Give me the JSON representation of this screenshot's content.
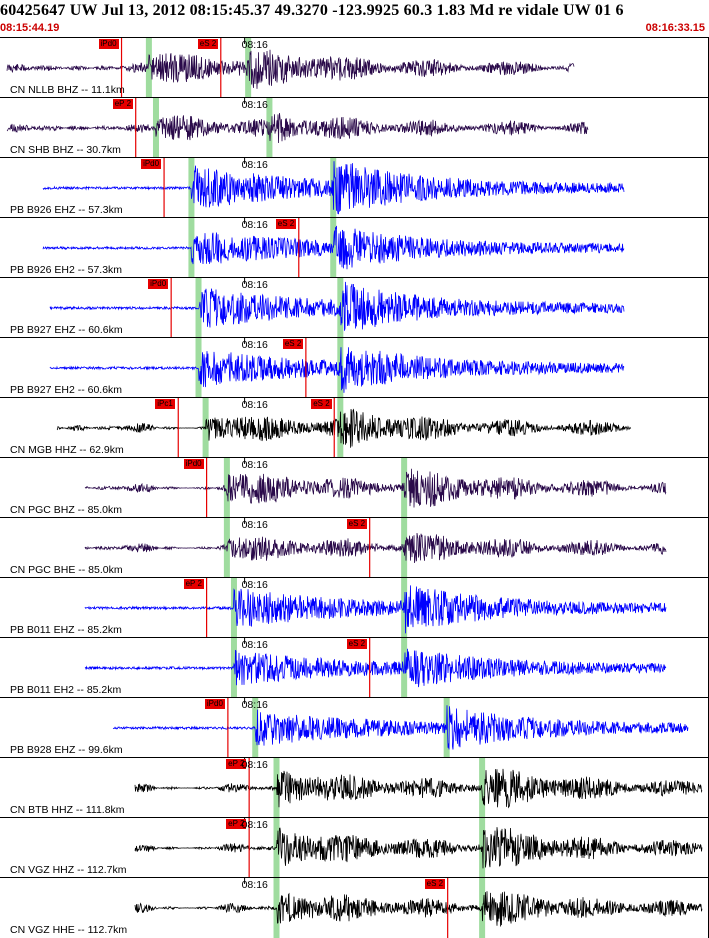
{
  "header": {
    "title": "60425647 UW Jul 13, 2012 08:15:45.37    49.3270 -123.9925 60.3 1.83 Md re vidale UW 01    6",
    "start_time": "08:15:44.19",
    "end_time": "08:16:33.15"
  },
  "colors": {
    "pick": "#e60000",
    "theoretical": "#9fdc9f",
    "short_period": "#0000ff",
    "broadband": "#2a0a4a",
    "high_gain": "#000000"
  },
  "traces": [
    {
      "label": "CN NLLB BHZ -- 11.1km",
      "time_label": "08:16",
      "color_name": "broadband",
      "seed": 11,
      "amp": 0.55,
      "start": 0.01,
      "end": 0.81,
      "onset": 0.21,
      "s": 0.35,
      "picks": [
        {
          "text": "iPd0",
          "at": 0.17
        },
        {
          "text": "eS 2",
          "at": 0.31
        }
      ]
    },
    {
      "label": "CN SHB BHZ -- 30.7km",
      "time_label": "08:16",
      "color_name": "broadband",
      "seed": 23,
      "amp": 0.35,
      "start": 0.01,
      "end": 0.83,
      "onset": 0.22,
      "s": 0.38,
      "picks": [
        {
          "text": "eP 2",
          "at": 0.19
        }
      ]
    },
    {
      "label": "PB B926 EHZ -- 57.3km",
      "time_label": "08:16",
      "color_name": "short_period",
      "seed": 37,
      "amp": 0.9,
      "start": 0.06,
      "end": 0.88,
      "onset": 0.27,
      "s": 0.47,
      "picks": [
        {
          "text": "iPd0",
          "at": 0.23
        }
      ]
    },
    {
      "label": "PB B926 EH2 -- 57.3km",
      "time_label": "08:16",
      "color_name": "short_period",
      "seed": 41,
      "amp": 0.7,
      "start": 0.06,
      "end": 0.88,
      "onset": 0.27,
      "s": 0.47,
      "picks": [
        {
          "text": "eS 2",
          "at": 0.42
        }
      ]
    },
    {
      "label": "PB B927 EHZ -- 60.6km",
      "time_label": "08:16",
      "color_name": "short_period",
      "seed": 53,
      "amp": 0.8,
      "start": 0.07,
      "end": 0.88,
      "onset": 0.28,
      "s": 0.48,
      "picks": [
        {
          "text": "iPd0",
          "at": 0.24
        }
      ]
    },
    {
      "label": "PB B927 EH2 -- 60.6km",
      "time_label": "08:16",
      "color_name": "short_period",
      "seed": 59,
      "amp": 0.75,
      "start": 0.07,
      "end": 0.88,
      "onset": 0.28,
      "s": 0.48,
      "picks": [
        {
          "text": "eS 2",
          "at": 0.43
        }
      ]
    },
    {
      "label": "CN MGB HHZ -- 62.9km",
      "time_label": "08:16",
      "color_name": "high_gain",
      "seed": 67,
      "amp": 0.5,
      "start": 0.08,
      "end": 0.89,
      "onset": 0.29,
      "s": 0.48,
      "picks": [
        {
          "text": "iPc1",
          "at": 0.25
        },
        {
          "text": "eS 2",
          "at": 0.47
        }
      ]
    },
    {
      "label": "CN PGC BHZ -- 85.0km",
      "time_label": "08:16",
      "color_name": "broadband",
      "seed": 73,
      "amp": 0.6,
      "start": 0.12,
      "end": 0.94,
      "onset": 0.32,
      "s": 0.57,
      "picks": [
        {
          "text": "iPd0",
          "at": 0.29
        }
      ]
    },
    {
      "label": "CN PGC BHE -- 85.0km",
      "time_label": "08:16",
      "color_name": "broadband",
      "seed": 79,
      "amp": 0.4,
      "start": 0.12,
      "end": 0.94,
      "onset": 0.32,
      "s": 0.57,
      "picks": [
        {
          "text": "eS 2",
          "at": 0.52
        }
      ]
    },
    {
      "label": "PB B011 EHZ -- 85.2km",
      "time_label": "08:16",
      "color_name": "short_period",
      "seed": 83,
      "amp": 0.8,
      "start": 0.12,
      "end": 0.94,
      "onset": 0.33,
      "s": 0.57,
      "picks": [
        {
          "text": "eP 2",
          "at": 0.29
        }
      ]
    },
    {
      "label": "PB B011 EH2 -- 85.2km",
      "time_label": "08:16",
      "color_name": "short_period",
      "seed": 89,
      "amp": 0.65,
      "start": 0.12,
      "end": 0.94,
      "onset": 0.33,
      "s": 0.57,
      "picks": [
        {
          "text": "eS 2",
          "at": 0.52
        }
      ]
    },
    {
      "label": "PB B928 EHZ -- 99.6km",
      "time_label": "08:16",
      "color_name": "short_period",
      "seed": 97,
      "amp": 0.7,
      "start": 0.16,
      "end": 0.97,
      "onset": 0.36,
      "s": 0.63,
      "picks": [
        {
          "text": "iPd0",
          "at": 0.32
        }
      ]
    },
    {
      "label": "CN BTB HHZ -- 111.8km",
      "time_label": "08:16",
      "color_name": "high_gain",
      "seed": 101,
      "amp": 0.65,
      "start": 0.19,
      "end": 0.99,
      "onset": 0.39,
      "s": 0.68,
      "picks": [
        {
          "text": "eP 2",
          "at": 0.35
        }
      ]
    },
    {
      "label": "CN VGZ HHZ -- 112.7km",
      "time_label": "08:16",
      "color_name": "high_gain",
      "seed": 103,
      "amp": 0.7,
      "start": 0.19,
      "end": 0.99,
      "onset": 0.39,
      "s": 0.68,
      "picks": [
        {
          "text": "eP 2",
          "at": 0.35
        }
      ]
    },
    {
      "label": "CN VGZ HHE -- 112.7km",
      "time_label": "08:16",
      "color_name": "high_gain",
      "seed": 107,
      "amp": 0.6,
      "start": 0.19,
      "end": 0.99,
      "onset": 0.39,
      "s": 0.68,
      "picks": [
        {
          "text": "eS 2",
          "at": 0.63
        }
      ]
    }
  ]
}
